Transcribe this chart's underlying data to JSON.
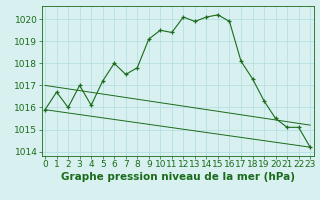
{
  "title": "Graphe pression niveau de la mer (hPa)",
  "hours": [
    0,
    1,
    2,
    3,
    4,
    5,
    6,
    7,
    8,
    9,
    10,
    11,
    12,
    13,
    14,
    15,
    16,
    17,
    18,
    19,
    20,
    21,
    22,
    23
  ],
  "pressure": [
    1015.9,
    1016.7,
    1016.0,
    1017.0,
    1016.1,
    1017.2,
    1018.0,
    1017.5,
    1017.8,
    1019.1,
    1019.5,
    1019.4,
    1020.1,
    1019.9,
    1020.1,
    1020.2,
    1019.9,
    1018.1,
    1017.3,
    1016.3,
    1015.5,
    1015.1,
    1015.1,
    1014.2
  ],
  "min_line": [
    1015.9,
    1014.2
  ],
  "max_line": [
    1017.0,
    1015.2
  ],
  "min_line_x": [
    0,
    23
  ],
  "max_line_x": [
    0,
    23
  ],
  "ylim": [
    1013.8,
    1020.6
  ],
  "yticks": [
    1014,
    1015,
    1016,
    1017,
    1018,
    1019,
    1020
  ],
  "xlim": [
    -0.3,
    23.3
  ],
  "bg_color": "#d8f0f0",
  "line_color": "#1a6b1a",
  "grid_color": "#b0dede",
  "title_color": "#1a6b1a",
  "title_fontsize": 7.5,
  "tick_fontsize": 6.5
}
